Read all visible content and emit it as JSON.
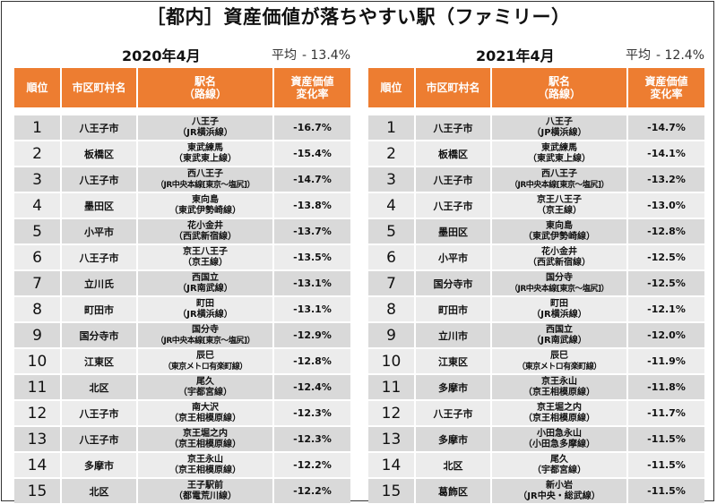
{
  "title": "［都内］資産価値が落ちやすい駅（ファミリー）",
  "headers": {
    "rank": "順位",
    "city": "市区町村名",
    "station_l1": "駅名",
    "station_l2": "（路線）",
    "rate_l1": "資産価値",
    "rate_l2": "変化率"
  },
  "panels": [
    {
      "date": "2020年4月",
      "avg_label": "平均",
      "avg_value": "- 13.4%",
      "rows": [
        {
          "rank": "1",
          "city": "八王子市",
          "station": "八王子",
          "line": "（JR横浜線）",
          "rate": "-16.7%"
        },
        {
          "rank": "2",
          "city": "板橋区",
          "station": "東武練馬",
          "line": "（東武東上線）",
          "rate": "-15.4%"
        },
        {
          "rank": "3",
          "city": "八王子市",
          "station": "西八王子",
          "line": "（JR中央本線[東京～塩尻]）",
          "rate": "-14.7%"
        },
        {
          "rank": "4",
          "city": "墨田区",
          "station": "東向島",
          "line": "（東武伊勢崎線）",
          "rate": "-13.8%"
        },
        {
          "rank": "5",
          "city": "小平市",
          "station": "花小金井",
          "line": "（西武新宿線）",
          "rate": "-13.7%"
        },
        {
          "rank": "6",
          "city": "八王子市",
          "station": "京王八王子",
          "line": "（京王線）",
          "rate": "-13.5%"
        },
        {
          "rank": "7",
          "city": "立川氏",
          "station": "西国立",
          "line": "（JR南武線）",
          "rate": "-13.1%"
        },
        {
          "rank": "8",
          "city": "町田市",
          "station": "町田",
          "line": "（JR横浜線）",
          "rate": "-13.1%"
        },
        {
          "rank": "9",
          "city": "国分寺市",
          "station": "国分寺",
          "line": "（JR中央本線[東京～塩尻]）",
          "rate": "-12.9%"
        },
        {
          "rank": "10",
          "city": "江東区",
          "station": "辰巳",
          "line": "（東京メトロ有楽町線）",
          "rate": "-12.8%"
        },
        {
          "rank": "11",
          "city": "北区",
          "station": "尾久",
          "line": "（宇都宮線）",
          "rate": "-12.4%"
        },
        {
          "rank": "12",
          "city": "八王子市",
          "station": "南大沢",
          "line": "（京王相模原線）",
          "rate": "-12.3%"
        },
        {
          "rank": "13",
          "city": "八王子市",
          "station": "京王堀之内",
          "line": "（京王相模原線）",
          "rate": "-12.3%"
        },
        {
          "rank": "14",
          "city": "多摩市",
          "station": "京王永山",
          "line": "（京王相模原線）",
          "rate": "-12.2%"
        },
        {
          "rank": "15",
          "city": "北区",
          "station": "王子駅前",
          "line": "（都電荒川線）",
          "rate": "-12.2%"
        }
      ]
    },
    {
      "date": "2021年4月",
      "avg_label": "平均",
      "avg_value": "- 12.4%",
      "rows": [
        {
          "rank": "1",
          "city": "八王子市",
          "station": "八王子",
          "line": "（JP横浜線）",
          "rate": "-14.7%"
        },
        {
          "rank": "2",
          "city": "板橋区",
          "station": "東武練馬",
          "line": "（東武東上線）",
          "rate": "-14.1%"
        },
        {
          "rank": "3",
          "city": "八王子市",
          "station": "西八王子",
          "line": "（JR中央本線[東京～塩尻]）",
          "rate": "-13.2%"
        },
        {
          "rank": "4",
          "city": "八王子市",
          "station": "京王八王子",
          "line": "（京王線）",
          "rate": "-13.0%"
        },
        {
          "rank": "5",
          "city": "墨田区",
          "station": "東向島",
          "line": "（東武伊勢崎線）",
          "rate": "-12.8%"
        },
        {
          "rank": "6",
          "city": "小平市",
          "station": "花小金井",
          "line": "（西武新宿線）",
          "rate": "-12.5%"
        },
        {
          "rank": "7",
          "city": "国分寺市",
          "station": "国分寺",
          "line": "（JR中央本線[東京～塩尻]）",
          "rate": "-12.5%"
        },
        {
          "rank": "8",
          "city": "町田市",
          "station": "町田",
          "line": "（JR横浜線）",
          "rate": "-12.1%"
        },
        {
          "rank": "9",
          "city": "立川市",
          "station": "西国立",
          "line": "（JR南武線）",
          "rate": "-12.0%"
        },
        {
          "rank": "10",
          "city": "江東区",
          "station": "辰巳",
          "line": "（東京メトロ有楽町線）",
          "rate": "-11.9%"
        },
        {
          "rank": "11",
          "city": "多摩市",
          "station": "京王永山",
          "line": "（京王相模原線）",
          "rate": "-11.8%"
        },
        {
          "rank": "12",
          "city": "八王子市",
          "station": "京王堀之内",
          "line": "（京王相模原線）",
          "rate": "-11.7%"
        },
        {
          "rank": "13",
          "city": "多摩市",
          "station": "小田急永山",
          "line": "（小田急多摩線）",
          "rate": "-11.5%"
        },
        {
          "rank": "14",
          "city": "北区",
          "station": "尾久",
          "line": "（宇都宮線）",
          "rate": "-11.5%"
        },
        {
          "rank": "15",
          "city": "葛飾区",
          "station": "新小岩",
          "line": "（JR中央・総武線）",
          "rate": "-11.5%"
        }
      ]
    }
  ],
  "colors": {
    "header_bg": "#ED7D31",
    "row_odd": "#d9d9d9",
    "row_even": "#ececec"
  }
}
